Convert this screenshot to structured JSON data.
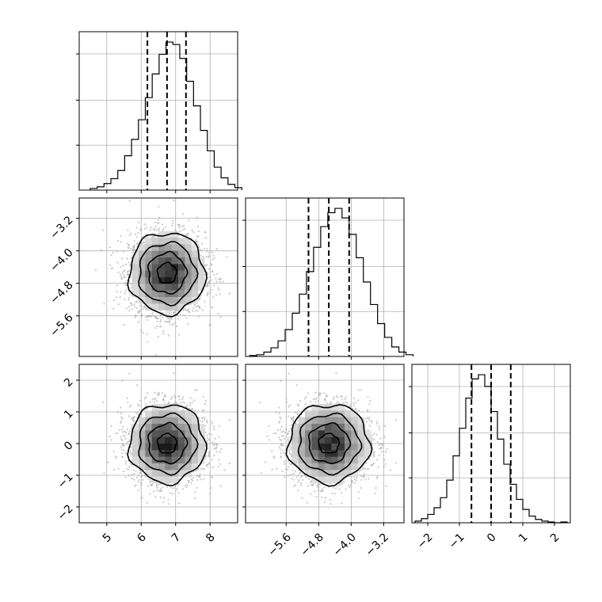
{
  "chart_data": {
    "type": "corner",
    "grid": true,
    "parameters": [
      {
        "index": 0,
        "range": [
          4.2,
          8.8
        ],
        "ticks": [
          5,
          6,
          7,
          8
        ],
        "tick_labels": [
          "5",
          "6",
          "7",
          "8"
        ],
        "quantiles": [
          6.18,
          6.75,
          7.3
        ],
        "hist_start": 4.52,
        "hist_step": 0.2,
        "hist_counts": [
          2,
          4,
          8,
          14,
          24,
          42,
          62,
          86,
          113,
          142,
          166,
          181,
          178,
          161,
          133,
          103,
          73,
          48,
          28,
          15,
          7,
          3
        ]
      },
      {
        "index": 1,
        "range": [
          -6.6,
          -2.7
        ],
        "ticks": [
          -5.6,
          -4.8,
          -4.0,
          -3.2
        ],
        "tick_labels": [
          "−5.6",
          "−4.8",
          "−4.0",
          "−3.2"
        ],
        "quantiles": [
          -5.05,
          -4.55,
          -4.05
        ],
        "hist_start": -6.5,
        "hist_step": 0.175,
        "hist_counts": [
          1,
          2,
          5,
          10,
          18,
          31,
          50,
          72,
          98,
          126,
          150,
          166,
          171,
          160,
          141,
          114,
          86,
          60,
          38,
          22,
          11,
          5,
          2
        ]
      },
      {
        "index": 2,
        "range": [
          -2.5,
          2.5
        ],
        "ticks": [
          -2,
          -1,
          0,
          1,
          2
        ],
        "tick_labels": [
          "−2",
          "−1",
          "0",
          "1",
          "2"
        ],
        "quantiles": [
          -0.62,
          0.0,
          0.62
        ],
        "hist_start": -2.4,
        "hist_step": 0.2,
        "hist_counts": [
          2,
          5,
          10,
          18,
          30,
          51,
          80,
          113,
          149,
          172,
          177,
          163,
          133,
          100,
          70,
          46,
          28,
          16,
          8,
          4,
          2,
          1,
          0,
          1
        ]
      }
    ],
    "pairs": [
      {
        "x": 0,
        "y": 1,
        "center": [
          6.75,
          -4.55
        ],
        "spread": [
          0.55,
          0.5
        ]
      },
      {
        "x": 0,
        "y": 2,
        "center": [
          6.75,
          0.0
        ],
        "spread": [
          0.55,
          0.62
        ]
      },
      {
        "x": 1,
        "y": 2,
        "center": [
          -4.55,
          0.0
        ],
        "spread": [
          0.5,
          0.62
        ]
      }
    ],
    "contour_levels_sigma": [
      0.5,
      1.0,
      1.5,
      2.0
    ],
    "shade_levels": [
      0.92,
      0.78,
      0.62,
      0.45,
      0.3,
      0.18,
      0.1
    ]
  }
}
